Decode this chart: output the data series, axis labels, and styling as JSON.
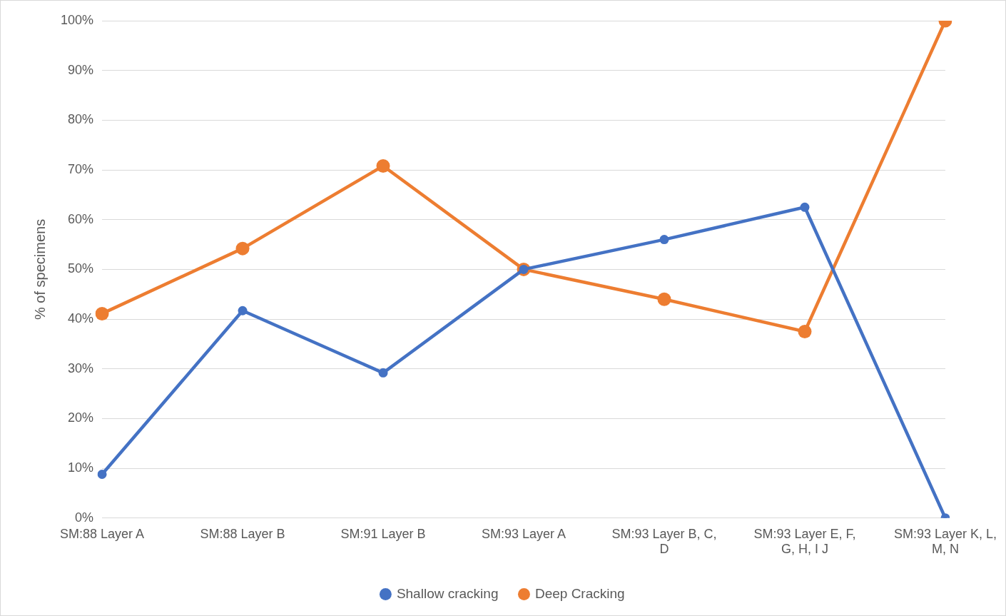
{
  "chart_data": {
    "type": "line",
    "ylabel": "% of specimens",
    "categories": [
      "SM:88 Layer A",
      "SM:88 Layer B",
      "SM:91 Layer B",
      "SM:93 Layer A",
      "SM:93 Layer B, C, D",
      "SM:93 Layer E, F, G, H, I J",
      "SM:93 Layer K, L, M, N"
    ],
    "series": [
      {
        "name": "Shallow cracking",
        "color": "#4472c4",
        "values": [
          8.8,
          41.7,
          29.2,
          50,
          56,
          62.5,
          0
        ]
      },
      {
        "name": "Deep Cracking",
        "color": "#ed7d31",
        "values": [
          41.1,
          54.2,
          70.8,
          50,
          44,
          37.5,
          100
        ]
      }
    ],
    "ylim": [
      0,
      100
    ],
    "yticks": [
      {
        "value": 0,
        "label": "0%"
      },
      {
        "value": 10,
        "label": "10%"
      },
      {
        "value": 20,
        "label": "20%"
      },
      {
        "value": 30,
        "label": "30%"
      },
      {
        "value": 40,
        "label": "40%"
      },
      {
        "value": 50,
        "label": "50%"
      },
      {
        "value": 60,
        "label": "60%"
      },
      {
        "value": 70,
        "label": "70%"
      },
      {
        "value": 80,
        "label": "80%"
      },
      {
        "value": 90,
        "label": "90%"
      },
      {
        "value": 100,
        "label": "100%"
      }
    ],
    "grid": "y",
    "legend": "bottom",
    "marker": "circle",
    "line_style": "solid"
  }
}
